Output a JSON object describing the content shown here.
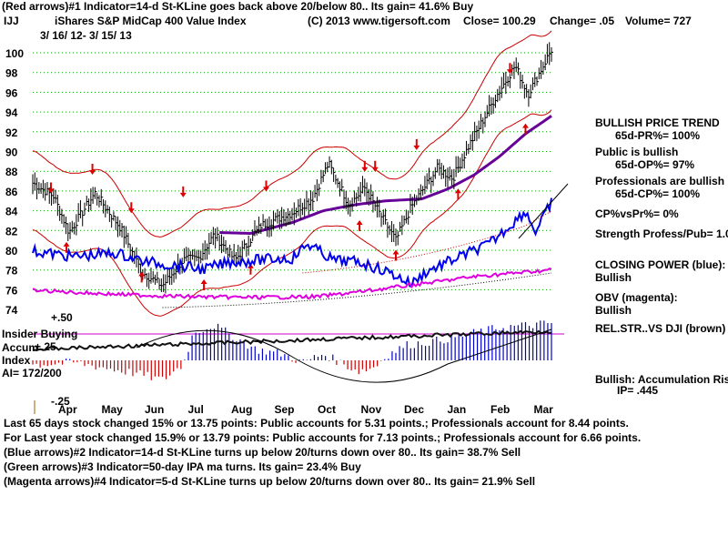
{
  "header": {
    "line1": "(Red arrows)#1 Indicator=14-d St-KLine goes back above 20/below 80.. Its gain= 41.6% Buy",
    "ticker": "IJJ",
    "name": "iShares S&P MidCap 400 Value Index",
    "copyright": "(C) 2013 www.tigersoft.com",
    "close": "Close=  100.29",
    "change": "Change= .05",
    "volume": "Volume= 727",
    "date_range": "3/ 16/ 12- 3/ 15/ 13"
  },
  "right_panel": {
    "bullish_trend_title": "BULLISH PRICE TREND",
    "pr": "65d-PR%= 100%",
    "public_title": "Public is bullish",
    "op": "65d-OP%= 97%",
    "prof_title": "Professionals are bullish",
    "cp": "65d-CP%= 100%",
    "cp_vs_pr": "CP%vsPr%=  0%",
    "strength": "Strength Profess/Pub= 1.0",
    "closing_power_title": "CLOSING POWER (blue):",
    "closing_power_value": "Bullish",
    "obv_title": "OBV (magenta):",
    "obv_value": "Bullish",
    "relstr": "REL.STR..VS DJI (brown)",
    "accum_title": "Bullish: Accumulation Rising",
    "ip": "IP=  .445"
  },
  "lower_panel": {
    "plus50": "+.50",
    "insider": "Insider Buying",
    "accum": "Accum",
    "plus25": "+.25",
    "index": "Index",
    "ai": "AI= 172/200",
    "minus25": "-.25"
  },
  "footer": {
    "line1": "Last 65 days stock changed  15% or  13.75 points:  Public accounts for  5.31 points.;  Professionals account for  8.44 points.",
    "line2": "For Last year stock changed  15.9% or  13.79 points:  Public accounts for  7.13 points.;  Professionals account for  6.66 points.",
    "line3": "(Blue arrows)#2 Indicator=14-d St-KLine turns up below 20/turns down over 80.. Its gain= 38.7% Sell",
    "line4": "(Green arrows)#3 Indicator=50-day IPA ma turns. Its gain= 23.4% Buy",
    "line5": "(Magenta arrows)#4 Indicator=5-d St-KLine turns up below 20/turns down over 80.. Its gain= 21.9% Sell"
  },
  "chart_data": {
    "type": "line",
    "title": "iShares S&P MidCap 400 Value Index (IJJ)",
    "y_ticks": [
      "100",
      "98",
      "96",
      "94",
      "92",
      "90",
      "88",
      "86",
      "84",
      "82",
      "80",
      "78",
      "76",
      "74"
    ],
    "ylim": [
      73,
      101
    ],
    "x_labels": [
      "Apr",
      "May",
      "Jun",
      "Jul",
      "Aug",
      "Sep",
      "Oct",
      "Nov",
      "Dec",
      "Jan",
      "Feb",
      "Mar"
    ],
    "price_keyframes": [
      {
        "t": 0,
        "v": 86.8
      },
      {
        "t": 0.04,
        "v": 85.5
      },
      {
        "t": 0.07,
        "v": 81.8
      },
      {
        "t": 0.12,
        "v": 85.8
      },
      {
        "t": 0.17,
        "v": 82.2
      },
      {
        "t": 0.21,
        "v": 77.8
      },
      {
        "t": 0.25,
        "v": 76.4
      },
      {
        "t": 0.29,
        "v": 79.0
      },
      {
        "t": 0.32,
        "v": 79.2
      },
      {
        "t": 0.35,
        "v": 81.6
      },
      {
        "t": 0.39,
        "v": 79.0
      },
      {
        "t": 0.44,
        "v": 82.5
      },
      {
        "t": 0.5,
        "v": 83.8
      },
      {
        "t": 0.54,
        "v": 85.3
      },
      {
        "t": 0.57,
        "v": 88.8
      },
      {
        "t": 0.61,
        "v": 84.6
      },
      {
        "t": 0.64,
        "v": 86.3
      },
      {
        "t": 0.67,
        "v": 83.6
      },
      {
        "t": 0.7,
        "v": 81.0
      },
      {
        "t": 0.73,
        "v": 84.4
      },
      {
        "t": 0.78,
        "v": 88.3
      },
      {
        "t": 0.81,
        "v": 87.3
      },
      {
        "t": 0.84,
        "v": 90.5
      },
      {
        "t": 0.89,
        "v": 95.3
      },
      {
        "t": 0.93,
        "v": 98.7
      },
      {
        "t": 0.955,
        "v": 95.8
      },
      {
        "t": 0.98,
        "v": 98.3
      },
      {
        "t": 1.0,
        "v": 100.3
      }
    ],
    "ma_keyframes": [
      {
        "t": 0.36,
        "v": 81.8
      },
      {
        "t": 0.42,
        "v": 81.7
      },
      {
        "t": 0.5,
        "v": 82.8
      },
      {
        "t": 0.56,
        "v": 84.0
      },
      {
        "t": 0.62,
        "v": 84.6
      },
      {
        "t": 0.68,
        "v": 85.0
      },
      {
        "t": 0.75,
        "v": 85.2
      },
      {
        "t": 0.8,
        "v": 86.2
      },
      {
        "t": 0.85,
        "v": 87.6
      },
      {
        "t": 0.9,
        "v": 89.5
      },
      {
        "t": 0.95,
        "v": 91.8
      },
      {
        "t": 1.0,
        "v": 93.6
      }
    ],
    "band_width": 4.0,
    "red_arrow_up": [
      {
        "t": 0.065,
        "v": 80.2
      },
      {
        "t": 0.21,
        "v": 77.2
      },
      {
        "t": 0.33,
        "v": 76.4
      },
      {
        "t": 0.42,
        "v": 78.0
      },
      {
        "t": 0.63,
        "v": 82.4
      },
      {
        "t": 0.7,
        "v": 79.4
      },
      {
        "t": 0.82,
        "v": 85.6
      },
      {
        "t": 0.95,
        "v": 92.2
      }
    ],
    "red_arrow_down": [
      {
        "t": 0.035,
        "v": 86.4
      },
      {
        "t": 0.115,
        "v": 88.3
      },
      {
        "t": 0.19,
        "v": 84.4
      },
      {
        "t": 0.29,
        "v": 86.0
      },
      {
        "t": 0.45,
        "v": 86.6
      },
      {
        "t": 0.64,
        "v": 88.6
      },
      {
        "t": 0.66,
        "v": 88.6
      },
      {
        "t": 0.74,
        "v": 90.8
      },
      {
        "t": 0.92,
        "v": 98.5
      }
    ],
    "series": [
      {
        "name": "Closing Power (blue)",
        "color": "#0000ee"
      },
      {
        "name": "OBV (magenta)",
        "color": "#dd00dd"
      },
      {
        "name": "Rel.Str vs DJI (brown)",
        "color": "#7a2a00"
      },
      {
        "name": "Accumulation Index",
        "color": "#0000cc"
      }
    ]
  }
}
